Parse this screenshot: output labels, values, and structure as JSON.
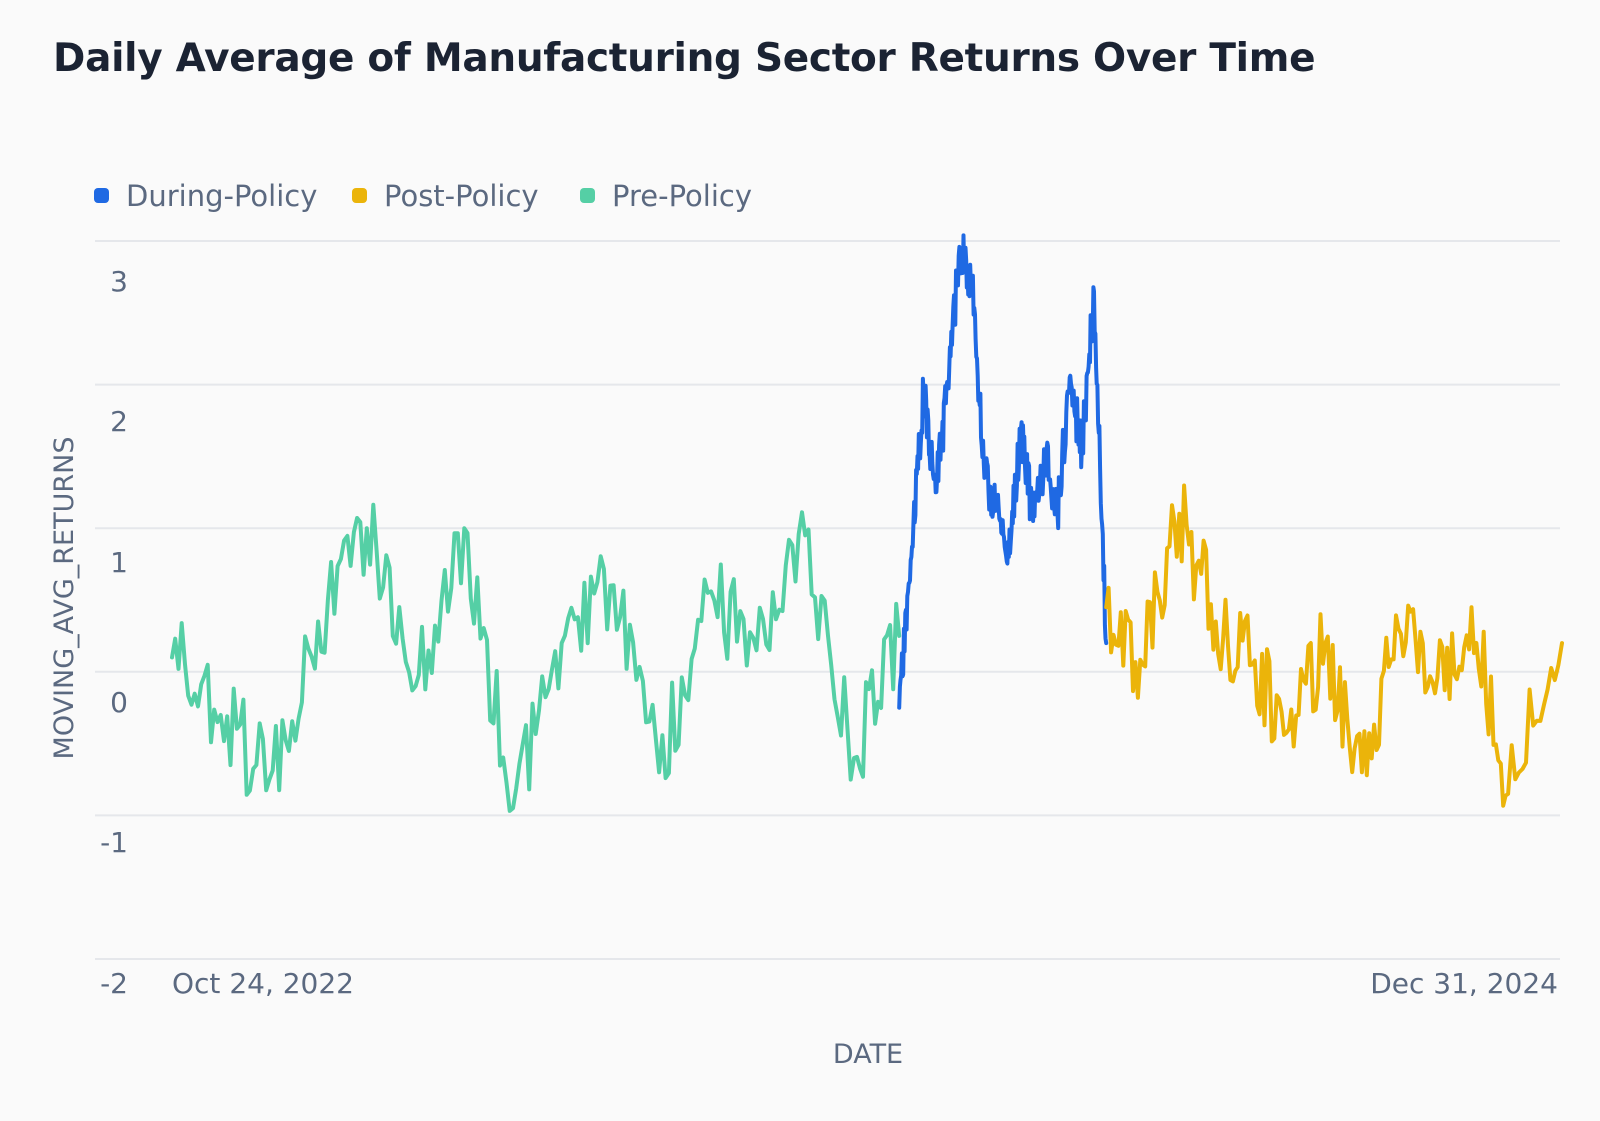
{
  "colors": {
    "during": "#1f69e3",
    "post": "#ebb40a",
    "pre": "#55cfa5",
    "grid": "#e5e7eb",
    "text": "#5b6980",
    "title": "#1b2333"
  },
  "chart_data": {
    "type": "line",
    "title": "Daily Average of Manufacturing Sector Returns Over Time",
    "xlabel": "DATE",
    "ylabel": "MOVING_AVG_RETURNS",
    "ylim": [
      -2,
      3
    ],
    "y_ticks": [
      3,
      2,
      1,
      0,
      -1,
      -2
    ],
    "y_tick_labels": [
      "3",
      "2",
      "1",
      "0",
      "-1",
      "-2"
    ],
    "x_range": [
      "2022-10-24",
      "2024-12-31"
    ],
    "x_tick_labels": [
      "Oct 24, 2022",
      "Dec 31, 2024"
    ],
    "grid": true,
    "legend_position": "top-left",
    "series": [
      {
        "name": "During-Policy",
        "color": "#1f69e3",
        "x": [
          "2023-12-16",
          "2023-12-23",
          "2023-12-30",
          "2024-01-06",
          "2024-01-13",
          "2024-01-20",
          "2024-01-27",
          "2024-02-03",
          "2024-02-10",
          "2024-02-17",
          "2024-02-24",
          "2024-03-02",
          "2024-03-09",
          "2024-03-16",
          "2024-03-23",
          "2024-03-30",
          "2024-04-06",
          "2024-04-13"
        ],
        "values": [
          -0.25,
          0.8,
          1.95,
          1.25,
          2.0,
          2.95,
          2.7,
          1.35,
          1.15,
          0.8,
          1.7,
          1.05,
          1.5,
          1.1,
          2.05,
          1.55,
          2.65,
          0.2
        ]
      },
      {
        "name": "Post-Policy",
        "color": "#ebb40a",
        "x": [
          "2024-04-13",
          "2024-05-04",
          "2024-05-25",
          "2024-06-15",
          "2024-07-06",
          "2024-07-27",
          "2024-08-17",
          "2024-09-07",
          "2024-09-28",
          "2024-10-19",
          "2024-11-09",
          "2024-11-30",
          "2024-12-31"
        ],
        "values": [
          0.45,
          0.05,
          1.1,
          0.35,
          0.05,
          -0.4,
          0.2,
          -0.7,
          0.3,
          -0.15,
          0.45,
          -0.85,
          0.2
        ]
      },
      {
        "name": "Pre-Policy",
        "color": "#55cfa5",
        "x": [
          "2022-10-24",
          "2022-11-21",
          "2022-12-19",
          "2023-01-16",
          "2023-02-13",
          "2023-03-13",
          "2023-04-10",
          "2023-05-08",
          "2023-06-05",
          "2023-07-03",
          "2023-07-31",
          "2023-08-28",
          "2023-09-25",
          "2023-10-23",
          "2023-11-20",
          "2023-12-16"
        ],
        "values": [
          0.1,
          -0.3,
          -0.75,
          0.35,
          1.0,
          -0.1,
          1.0,
          -0.95,
          0.2,
          0.6,
          -0.7,
          0.55,
          0.15,
          0.95,
          -0.6,
          0.25
        ]
      }
    ]
  }
}
